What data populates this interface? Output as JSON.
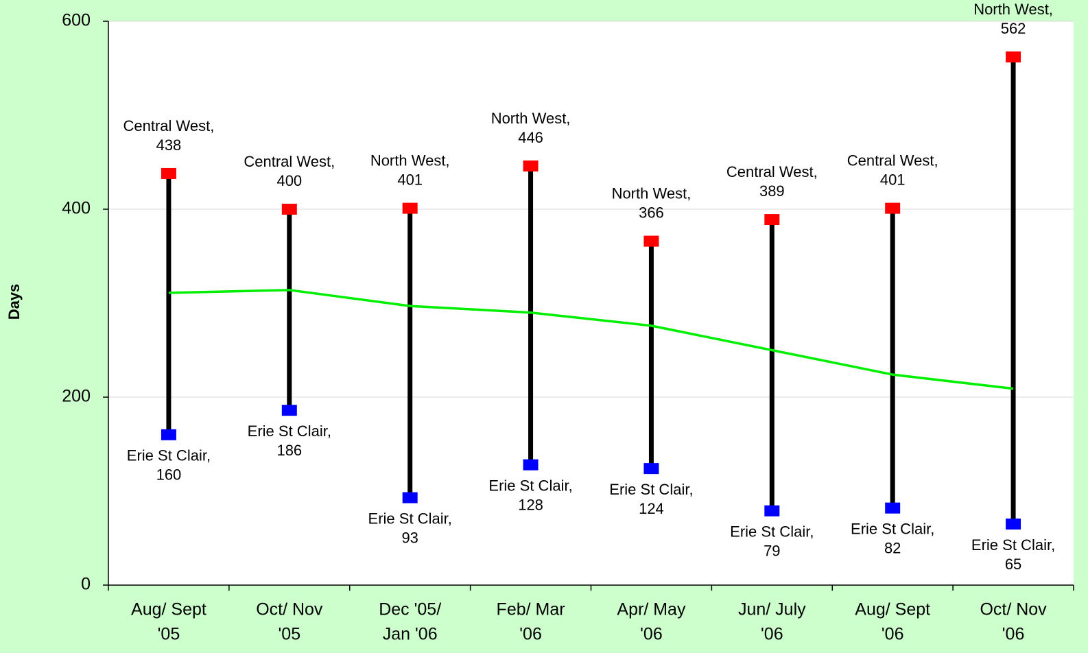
{
  "chart_data": {
    "type": "hilo-line",
    "y_label": "Days",
    "categories": [
      [
        "Aug/ Sept",
        "'05"
      ],
      [
        "Oct/ Nov",
        "'05"
      ],
      [
        "Dec '05/",
        "Jan '06"
      ],
      [
        "Feb/ Mar",
        "'06"
      ],
      [
        "Apr/ May",
        "'06"
      ],
      [
        "Jun/ July",
        "'06"
      ],
      [
        "Aug/ Sept",
        "'06"
      ],
      [
        "Oct/ Nov",
        "'06"
      ]
    ],
    "series": [
      {
        "color": "#ff0000",
        "labels": [
          "Central West,",
          "Central West,",
          "North West,",
          "North West,",
          "North West,",
          "Central West,",
          "Central West,",
          "North West,"
        ],
        "values": [
          438,
          400,
          401,
          446,
          366,
          389,
          401,
          562
        ]
      },
      {
        "color": "#0000ff",
        "labels": [
          "Erie St Clair,",
          "Erie St Clair,",
          "Erie St Clair,",
          "Erie St Clair,",
          "Erie St Clair,",
          "Erie St Clair,",
          "Erie St Clair,",
          "Erie St Clair,"
        ],
        "values": [
          160,
          186,
          93,
          128,
          124,
          79,
          82,
          65
        ]
      },
      {
        "color": "#00ee00",
        "values": [
          311,
          314,
          297,
          290,
          276,
          250,
          224,
          209
        ]
      }
    ],
    "ylim": [
      0,
      600
    ],
    "yticks": [
      0,
      200,
      400,
      600
    ],
    "grid": true
  }
}
